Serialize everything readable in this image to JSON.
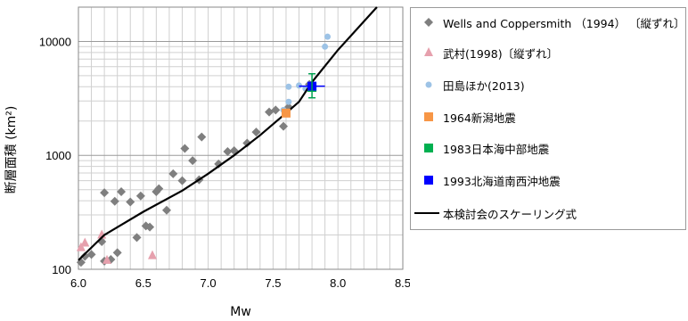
{
  "chart_data": {
    "type": "scatter",
    "xlabel": "Mw",
    "ylabel": "断層面積 (km²)",
    "xlim": [
      6.0,
      8.5
    ],
    "ylim": [
      100,
      20000
    ],
    "y_scale": "log",
    "x_ticks": [
      "6.0",
      "6.5",
      "7.0",
      "7.5",
      "8.0",
      "8.5"
    ],
    "y_ticks": [
      "100",
      "1000",
      "10000"
    ],
    "grid": true,
    "legend_position": "right",
    "series": [
      {
        "name": "Wells and Coppersmith （1994） 〔縦ずれ〕",
        "marker": "diamond",
        "color": "#7f7f7f",
        "points": [
          [
            6.02,
            115
          ],
          [
            6.05,
            130
          ],
          [
            6.1,
            135
          ],
          [
            6.18,
            175
          ],
          [
            6.2,
            470
          ],
          [
            6.2,
            118
          ],
          [
            6.25,
            122
          ],
          [
            6.28,
            395
          ],
          [
            6.3,
            140
          ],
          [
            6.33,
            480
          ],
          [
            6.4,
            390
          ],
          [
            6.45,
            190
          ],
          [
            6.48,
            440
          ],
          [
            6.52,
            240
          ],
          [
            6.55,
            235
          ],
          [
            6.6,
            480
          ],
          [
            6.62,
            510
          ],
          [
            6.68,
            330
          ],
          [
            6.73,
            690
          ],
          [
            6.8,
            600
          ],
          [
            6.82,
            1150
          ],
          [
            6.88,
            900
          ],
          [
            6.93,
            610
          ],
          [
            6.95,
            1450
          ],
          [
            7.08,
            840
          ],
          [
            7.15,
            1080
          ],
          [
            7.2,
            1100
          ],
          [
            7.3,
            1280
          ],
          [
            7.37,
            1600
          ],
          [
            7.47,
            2400
          ],
          [
            7.52,
            2500
          ],
          [
            7.58,
            1800
          ],
          [
            7.62,
            2650
          ],
          [
            7.78,
            4200
          ]
        ]
      },
      {
        "name": "武村(1998)〔縦ずれ〕",
        "marker": "triangle",
        "color": "#e6a0ad",
        "points": [
          [
            6.02,
            155
          ],
          [
            6.05,
            170
          ],
          [
            6.18,
            200
          ],
          [
            6.22,
            120
          ],
          [
            6.57,
            132
          ]
        ]
      },
      {
        "name": "田島ほか(2013)",
        "marker": "circle",
        "color": "#9dc3e6",
        "points": [
          [
            7.58,
            2500
          ],
          [
            7.62,
            2950
          ],
          [
            7.62,
            4000
          ],
          [
            7.7,
            4100
          ],
          [
            7.75,
            3850
          ],
          [
            7.9,
            9000
          ],
          [
            7.92,
            11000
          ]
        ]
      },
      {
        "name": "1964新潟地震",
        "marker": "square",
        "color": "#f79646",
        "points": [
          [
            7.6,
            2350
          ]
        ]
      },
      {
        "name": "1983日本海中部地震",
        "marker": "square",
        "color": "#00b050",
        "points": [
          [
            7.8,
            3950
          ]
        ]
      },
      {
        "name": "1993北海道南西沖地震",
        "marker": "square",
        "color": "#0000ff",
        "points": [
          [
            7.8,
            4050
          ]
        ]
      },
      {
        "name": "本検討会のスケーリング式",
        "type": "line",
        "color": "#000000",
        "points": [
          [
            6.0,
            120
          ],
          [
            6.2,
            200
          ],
          [
            6.5,
            320
          ],
          [
            6.8,
            490
          ],
          [
            7.0,
            690
          ],
          [
            7.2,
            1000
          ],
          [
            7.4,
            1500
          ],
          [
            7.6,
            2350
          ],
          [
            7.7,
            2950
          ],
          [
            7.8,
            4400
          ],
          [
            8.0,
            8400
          ],
          [
            8.3,
            20000
          ]
        ]
      }
    ]
  }
}
